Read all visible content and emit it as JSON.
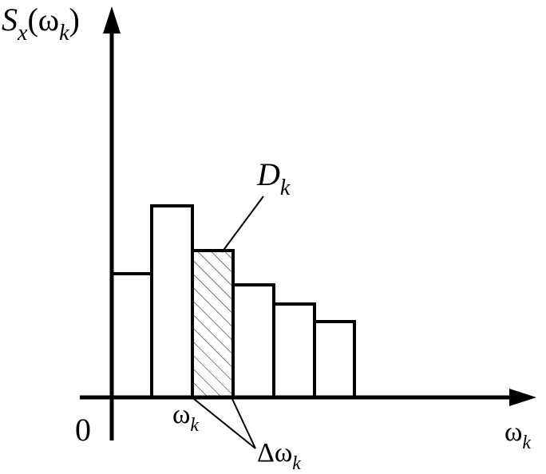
{
  "labels": {
    "y_axis": [
      {
        "text": "S",
        "italic": true
      },
      {
        "text": "x",
        "italic": true,
        "sub": true
      },
      {
        "text": "(ω"
      },
      {
        "text": "k",
        "italic": true,
        "sub": true
      },
      {
        "text": ")"
      }
    ],
    "highlight": [
      {
        "text": "D",
        "italic": true
      },
      {
        "text": "k",
        "italic": true,
        "sub": true
      }
    ],
    "origin": [
      {
        "text": "0"
      }
    ],
    "omega_k": [
      {
        "text": "ω"
      },
      {
        "text": "k",
        "italic": true,
        "sub": true
      }
    ],
    "delta_omega": [
      {
        "text": "Δω"
      },
      {
        "text": "k",
        "italic": true,
        "sub": true
      }
    ],
    "x_axis": [
      {
        "text": "ω"
      },
      {
        "text": "k",
        "italic": true,
        "sub": true
      }
    ]
  }
}
